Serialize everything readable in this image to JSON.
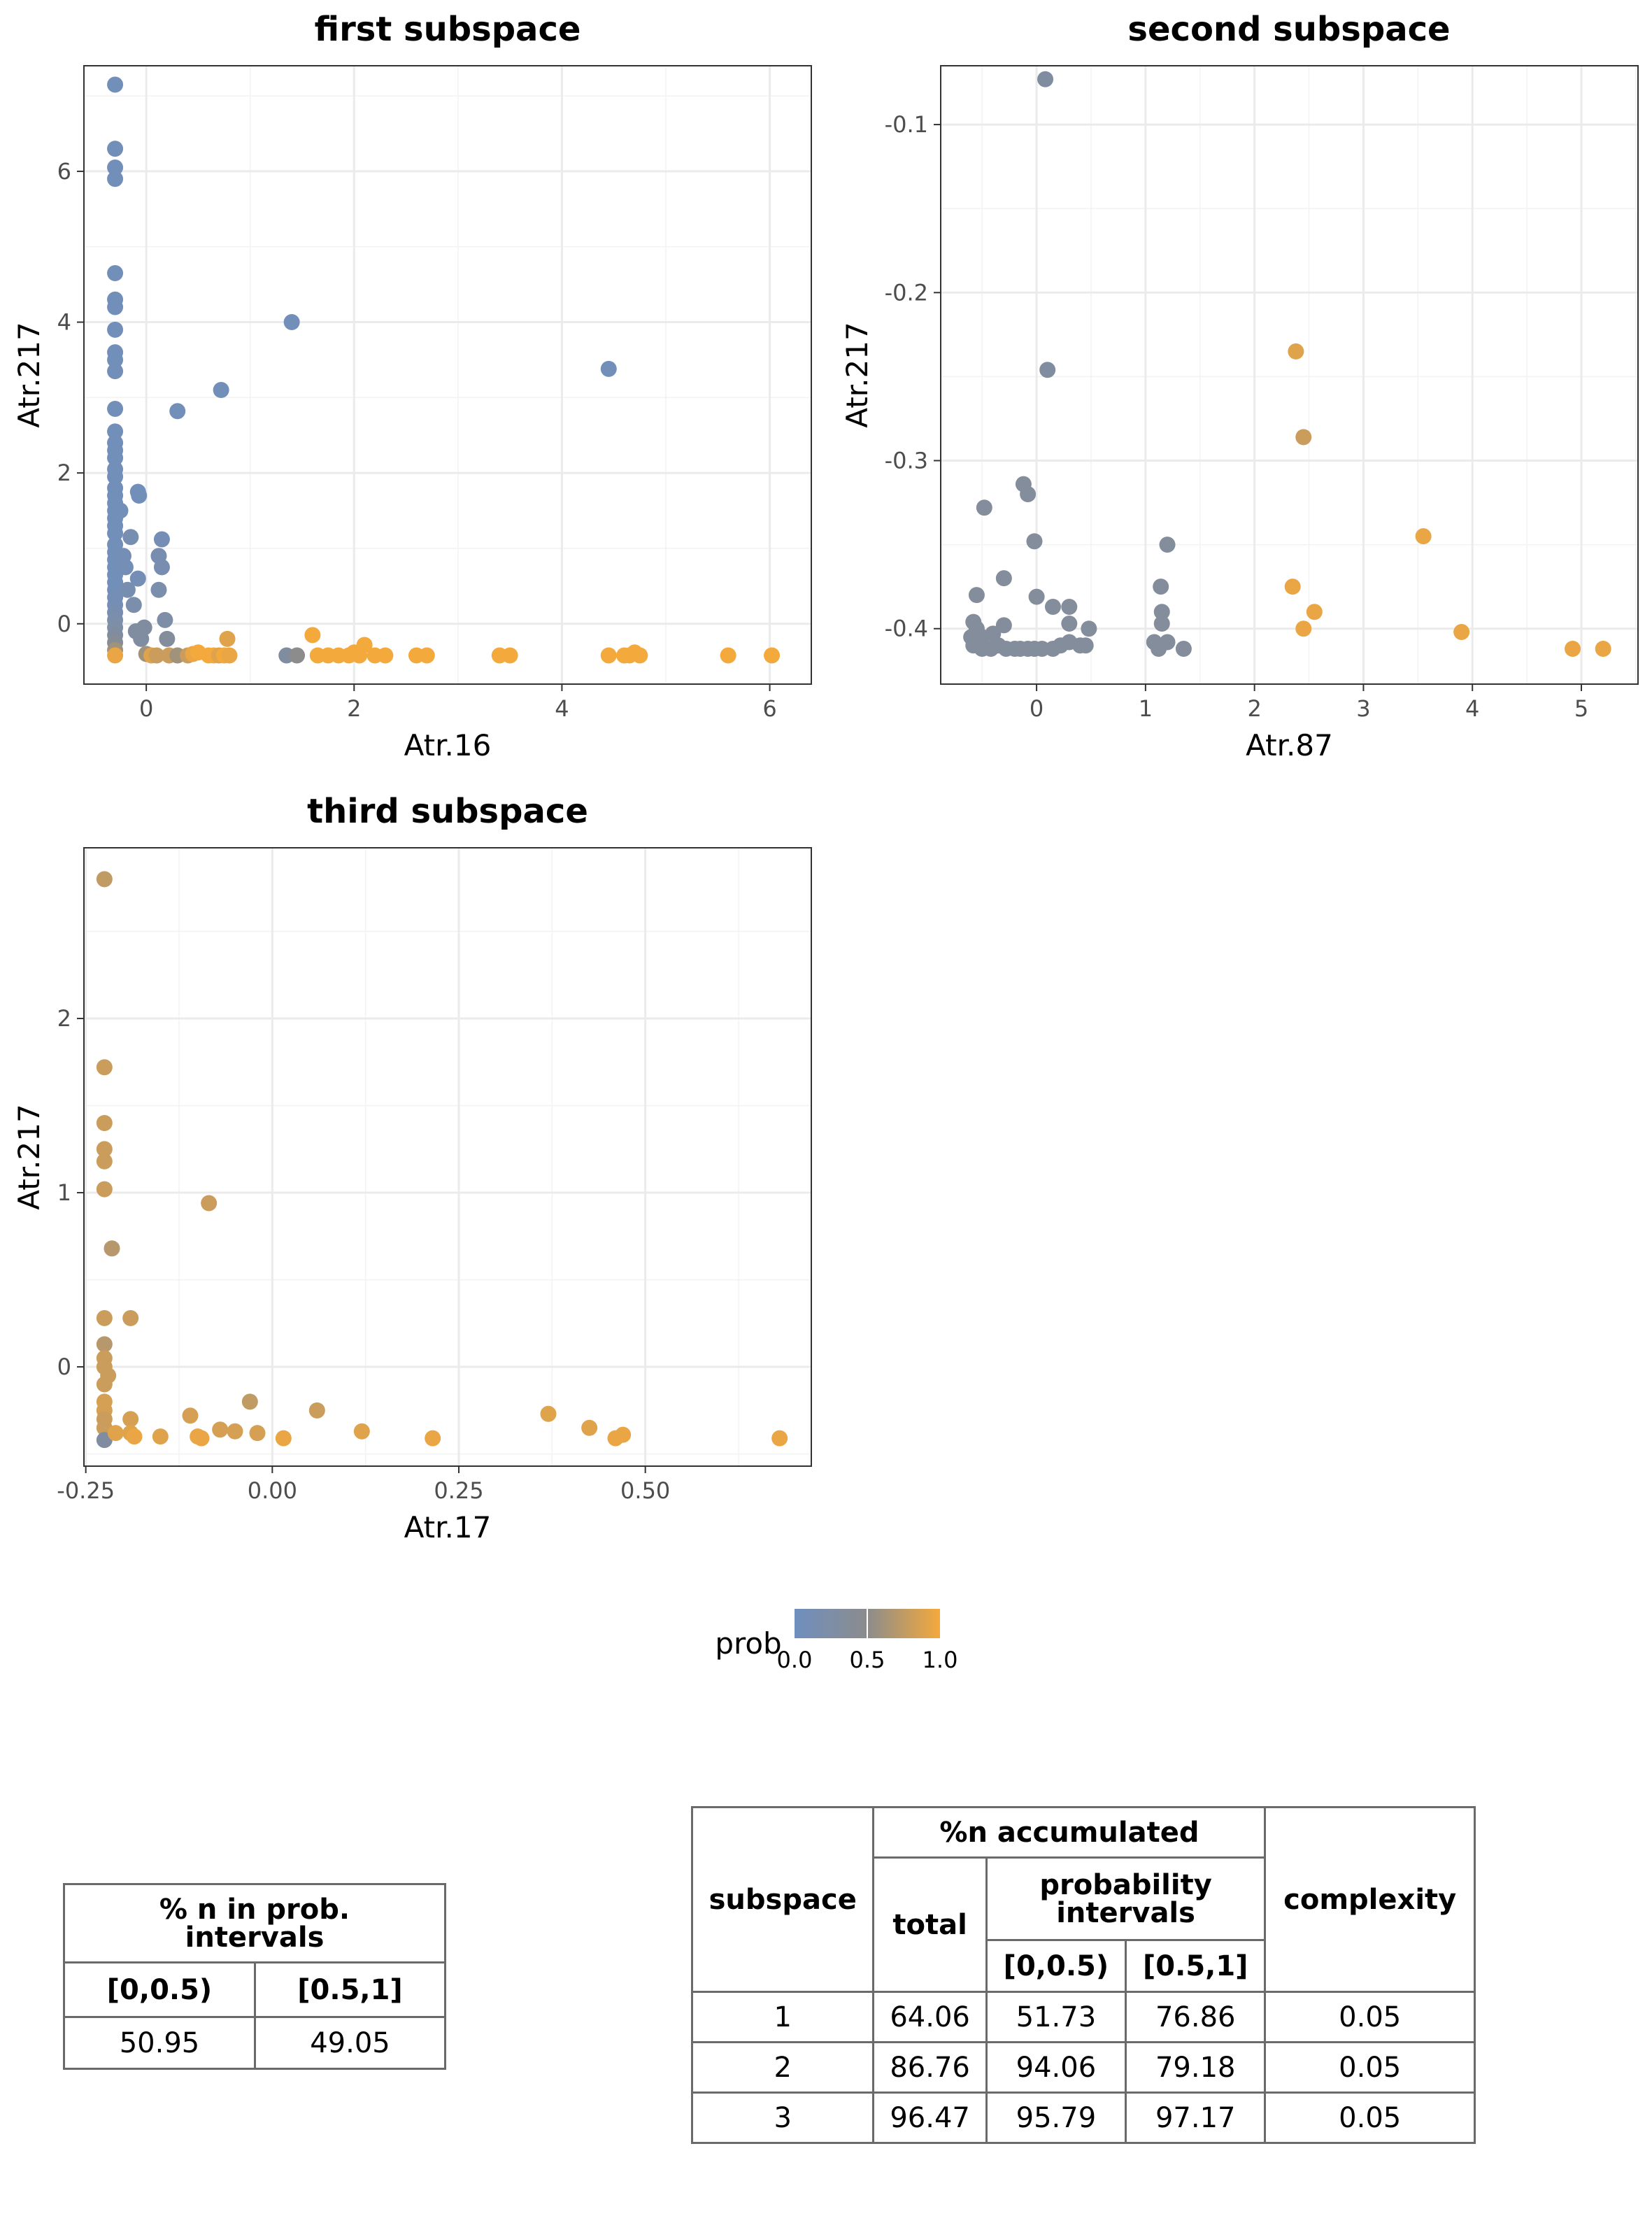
{
  "chart_data": [
    {
      "type": "scatter",
      "title": "first subspace",
      "xlabel": "Atr.16",
      "ylabel": "Atr.217",
      "xlim": [
        -0.6,
        6.4
      ],
      "ylim": [
        -0.8,
        7.4
      ],
      "xticks": [
        "0",
        "2",
        "4",
        "6"
      ],
      "xtick_values": [
        0,
        2,
        4,
        6
      ],
      "yticks": [
        "0",
        "2",
        "4",
        "6"
      ],
      "ytick_values": [
        0,
        2,
        4,
        6
      ],
      "points": [
        [
          -0.3,
          7.15,
          0.05
        ],
        [
          -0.3,
          6.3,
          0.05
        ],
        [
          -0.3,
          6.05,
          0.05
        ],
        [
          -0.3,
          5.9,
          0.05
        ],
        [
          -0.3,
          4.65,
          0.05
        ],
        [
          -0.3,
          4.3,
          0.05
        ],
        [
          -0.3,
          4.2,
          0.05
        ],
        [
          -0.3,
          3.9,
          0.05
        ],
        [
          -0.3,
          3.6,
          0.05
        ],
        [
          -0.3,
          3.5,
          0.05
        ],
        [
          -0.3,
          3.35,
          0.05
        ],
        [
          -0.3,
          2.85,
          0.05
        ],
        [
          -0.3,
          2.55,
          0.05
        ],
        [
          -0.3,
          2.4,
          0.05
        ],
        [
          -0.3,
          2.3,
          0.05
        ],
        [
          -0.3,
          2.2,
          0.05
        ],
        [
          -0.3,
          2.05,
          0.05
        ],
        [
          -0.3,
          1.95,
          0.05
        ],
        [
          -0.3,
          1.8,
          0.05
        ],
        [
          -0.3,
          1.7,
          0.05
        ],
        [
          -0.3,
          1.6,
          0.05
        ],
        [
          -0.3,
          1.5,
          0.05
        ],
        [
          -0.3,
          1.4,
          0.05
        ],
        [
          -0.3,
          1.3,
          0.05
        ],
        [
          -0.3,
          1.2,
          0.05
        ],
        [
          -0.3,
          1.05,
          0.05
        ],
        [
          -0.3,
          0.95,
          0.05
        ],
        [
          -0.3,
          0.85,
          0.05
        ],
        [
          -0.3,
          0.75,
          0.05
        ],
        [
          -0.3,
          0.65,
          0.05
        ],
        [
          -0.3,
          0.55,
          0.05
        ],
        [
          -0.3,
          0.45,
          0.05
        ],
        [
          -0.3,
          0.35,
          0.1
        ],
        [
          -0.3,
          0.25,
          0.1
        ],
        [
          -0.3,
          0.15,
          0.15
        ],
        [
          -0.3,
          0.05,
          0.2
        ],
        [
          -0.3,
          -0.05,
          0.25
        ],
        [
          -0.3,
          -0.15,
          0.3
        ],
        [
          -0.3,
          -0.25,
          0.4
        ],
        [
          -0.3,
          -0.35,
          0.6
        ],
        [
          -0.3,
          -0.42,
          0.95
        ],
        [
          -0.25,
          1.5,
          0.05
        ],
        [
          -0.22,
          0.9,
          0.1
        ],
        [
          -0.2,
          0.75,
          0.1
        ],
        [
          -0.18,
          0.45,
          0.15
        ],
        [
          -0.15,
          1.15,
          0.15
        ],
        [
          -0.12,
          0.25,
          0.2
        ],
        [
          -0.1,
          -0.1,
          0.3
        ],
        [
          -0.08,
          1.75,
          0.05
        ],
        [
          -0.07,
          1.7,
          0.05
        ],
        [
          -0.08,
          0.6,
          0.1
        ],
        [
          -0.05,
          -0.2,
          0.3
        ],
        [
          -0.02,
          -0.05,
          0.3
        ],
        [
          0.0,
          -0.4,
          0.6
        ],
        [
          0.05,
          -0.42,
          0.9
        ],
        [
          0.1,
          -0.42,
          0.8
        ],
        [
          0.12,
          0.9,
          0.15
        ],
        [
          0.12,
          0.45,
          0.2
        ],
        [
          0.15,
          0.75,
          0.15
        ],
        [
          0.15,
          1.12,
          0.1
        ],
        [
          0.18,
          0.05,
          0.25
        ],
        [
          0.2,
          -0.2,
          0.35
        ],
        [
          0.22,
          -0.42,
          0.8
        ],
        [
          0.3,
          2.82,
          0.05
        ],
        [
          0.3,
          -0.42,
          0.6
        ],
        [
          0.4,
          -0.42,
          0.8
        ],
        [
          0.45,
          -0.4,
          0.95
        ],
        [
          0.5,
          -0.38,
          1.0
        ],
        [
          0.6,
          -0.42,
          1.0
        ],
        [
          0.65,
          -0.42,
          1.0
        ],
        [
          0.7,
          -0.42,
          0.9
        ],
        [
          0.72,
          3.1,
          0.05
        ],
        [
          0.75,
          -0.42,
          1.0
        ],
        [
          0.78,
          -0.2,
          0.9
        ],
        [
          0.8,
          -0.42,
          0.95
        ],
        [
          1.35,
          -0.42,
          0.3
        ],
        [
          1.4,
          4.0,
          0.05
        ],
        [
          1.45,
          -0.42,
          0.5
        ],
        [
          1.6,
          -0.15,
          1.0
        ],
        [
          1.65,
          -0.42,
          1.0
        ],
        [
          1.75,
          -0.42,
          1.0
        ],
        [
          1.85,
          -0.42,
          1.0
        ],
        [
          1.95,
          -0.42,
          1.0
        ],
        [
          2.0,
          -0.38,
          1.0
        ],
        [
          2.05,
          -0.42,
          1.0
        ],
        [
          2.1,
          -0.28,
          1.0
        ],
        [
          2.2,
          -0.42,
          1.0
        ],
        [
          2.3,
          -0.42,
          1.0
        ],
        [
          2.6,
          -0.42,
          1.0
        ],
        [
          2.7,
          -0.42,
          1.0
        ],
        [
          3.4,
          -0.42,
          1.0
        ],
        [
          3.5,
          -0.42,
          1.0
        ],
        [
          4.45,
          3.38,
          0.05
        ],
        [
          4.45,
          -0.42,
          1.0
        ],
        [
          4.6,
          -0.42,
          1.0
        ],
        [
          4.65,
          -0.42,
          1.0
        ],
        [
          4.7,
          -0.38,
          1.0
        ],
        [
          4.75,
          -0.42,
          1.0
        ],
        [
          5.6,
          -0.42,
          1.0
        ],
        [
          6.02,
          -0.42,
          1.0
        ]
      ]
    },
    {
      "type": "scatter",
      "title": "second subspace",
      "xlabel": "Atr.87",
      "ylabel": "Atr.217",
      "xlim": [
        -0.88,
        5.52
      ],
      "ylim": [
        -0.433,
        -0.065
      ],
      "xticks": [
        "0",
        "1",
        "2",
        "3",
        "4",
        "5"
      ],
      "xtick_values": [
        0,
        1,
        2,
        3,
        4,
        5
      ],
      "yticks": [
        "-0.4",
        "-0.3",
        "-0.2",
        "-0.1"
      ],
      "ytick_values": [
        -0.4,
        -0.3,
        -0.2,
        -0.1
      ],
      "points": [
        [
          0.08,
          -0.073,
          0.3
        ],
        [
          0.1,
          -0.246,
          0.3
        ],
        [
          2.38,
          -0.235,
          0.9
        ],
        [
          2.45,
          -0.286,
          0.8
        ],
        [
          -0.48,
          -0.328,
          0.35
        ],
        [
          -0.12,
          -0.314,
          0.35
        ],
        [
          -0.08,
          -0.32,
          0.35
        ],
        [
          -0.02,
          -0.348,
          0.35
        ],
        [
          1.2,
          -0.35,
          0.35
        ],
        [
          3.55,
          -0.345,
          0.95
        ],
        [
          -0.55,
          -0.38,
          0.35
        ],
        [
          -0.3,
          -0.37,
          0.35
        ],
        [
          0.0,
          -0.381,
          0.35
        ],
        [
          0.15,
          -0.387,
          0.35
        ],
        [
          0.3,
          -0.387,
          0.35
        ],
        [
          1.14,
          -0.375,
          0.35
        ],
        [
          2.35,
          -0.375,
          0.95
        ],
        [
          2.55,
          -0.39,
          0.95
        ],
        [
          1.15,
          -0.39,
          0.35
        ],
        [
          1.15,
          -0.397,
          0.35
        ],
        [
          0.3,
          -0.397,
          0.35
        ],
        [
          0.48,
          -0.4,
          0.35
        ],
        [
          2.45,
          -0.4,
          0.95
        ],
        [
          3.9,
          -0.402,
          0.95
        ],
        [
          -0.58,
          -0.396,
          0.35
        ],
        [
          -0.55,
          -0.4,
          0.35
        ],
        [
          -0.6,
          -0.405,
          0.35
        ],
        [
          -0.5,
          -0.405,
          0.35
        ],
        [
          -0.4,
          -0.403,
          0.35
        ],
        [
          -0.3,
          -0.398,
          0.35
        ],
        [
          -0.58,
          -0.41,
          0.35
        ],
        [
          -0.5,
          -0.412,
          0.35
        ],
        [
          -0.42,
          -0.412,
          0.35
        ],
        [
          -0.35,
          -0.41,
          0.35
        ],
        [
          -0.28,
          -0.412,
          0.35
        ],
        [
          -0.2,
          -0.412,
          0.35
        ],
        [
          -0.15,
          -0.412,
          0.35
        ],
        [
          -0.08,
          -0.412,
          0.35
        ],
        [
          -0.02,
          -0.412,
          0.35
        ],
        [
          0.05,
          -0.412,
          0.35
        ],
        [
          0.15,
          -0.412,
          0.35
        ],
        [
          0.22,
          -0.41,
          0.35
        ],
        [
          0.3,
          -0.408,
          0.35
        ],
        [
          0.4,
          -0.41,
          0.35
        ],
        [
          0.45,
          -0.41,
          0.35
        ],
        [
          1.08,
          -0.408,
          0.35
        ],
        [
          1.12,
          -0.412,
          0.35
        ],
        [
          1.2,
          -0.408,
          0.35
        ],
        [
          1.35,
          -0.412,
          0.35
        ],
        [
          4.92,
          -0.412,
          0.95
        ],
        [
          5.2,
          -0.412,
          0.95
        ]
      ]
    },
    {
      "type": "scatter",
      "title": "third subspace",
      "xlabel": "Atr.17",
      "ylabel": "Atr.217",
      "xlim": [
        -0.2525,
        0.7225
      ],
      "ylim": [
        -0.57,
        2.98
      ],
      "xticks": [
        "-0.25",
        "0.00",
        "0.25",
        "0.50"
      ],
      "xtick_values": [
        -0.25,
        0,
        0.25,
        0.5
      ],
      "yticks": [
        "0",
        "1",
        "2"
      ],
      "ytick_values": [
        0,
        1,
        2
      ],
      "points": [
        [
          -0.225,
          2.8,
          0.75
        ],
        [
          -0.225,
          1.72,
          0.8
        ],
        [
          -0.225,
          1.4,
          0.8
        ],
        [
          -0.225,
          1.25,
          0.8
        ],
        [
          -0.225,
          1.18,
          0.8
        ],
        [
          -0.225,
          1.02,
          0.8
        ],
        [
          -0.215,
          0.68,
          0.7
        ],
        [
          -0.225,
          0.28,
          0.8
        ],
        [
          -0.19,
          0.28,
          0.8
        ],
        [
          -0.225,
          0.13,
          0.7
        ],
        [
          -0.225,
          0.05,
          0.8
        ],
        [
          -0.225,
          0.0,
          0.8
        ],
        [
          -0.22,
          -0.05,
          0.8
        ],
        [
          -0.225,
          -0.1,
          0.8
        ],
        [
          -0.225,
          -0.2,
          0.85
        ],
        [
          -0.225,
          -0.25,
          0.85
        ],
        [
          -0.225,
          -0.3,
          0.8
        ],
        [
          -0.225,
          -0.35,
          0.8
        ],
        [
          -0.225,
          -0.42,
          0.3
        ],
        [
          -0.21,
          -0.38,
          0.9
        ],
        [
          -0.19,
          -0.3,
          0.85
        ],
        [
          -0.19,
          -0.38,
          0.9
        ],
        [
          -0.185,
          -0.4,
          0.95
        ],
        [
          -0.15,
          -0.4,
          0.9
        ],
        [
          -0.11,
          -0.28,
          0.85
        ],
        [
          -0.1,
          -0.4,
          0.95
        ],
        [
          -0.095,
          -0.41,
          0.95
        ],
        [
          -0.085,
          0.94,
          0.8
        ],
        [
          -0.07,
          -0.36,
          0.85
        ],
        [
          -0.05,
          -0.37,
          0.85
        ],
        [
          -0.03,
          -0.2,
          0.75
        ],
        [
          -0.02,
          -0.38,
          0.85
        ],
        [
          0.015,
          -0.41,
          0.95
        ],
        [
          0.06,
          -0.25,
          0.8
        ],
        [
          0.12,
          -0.37,
          0.9
        ],
        [
          0.215,
          -0.41,
          0.95
        ],
        [
          0.37,
          -0.27,
          0.9
        ],
        [
          0.425,
          -0.35,
          0.9
        ],
        [
          0.46,
          -0.41,
          0.95
        ],
        [
          0.47,
          -0.39,
          0.95
        ],
        [
          0.68,
          -0.41,
          0.95
        ]
      ]
    }
  ],
  "legend": {
    "title": "prob",
    "ticks": [
      "0.0",
      "0.5",
      "1.0"
    ],
    "low_color": "#6f8fbf",
    "mid_color": "#8c8c8c",
    "high_color": "#f4a93c"
  },
  "left_table": {
    "header": "% n in prob. intervals",
    "header_line1": "% n in prob.",
    "header_line2": "intervals",
    "col1": "[0,0.5)",
    "col2": "[0.5,1]",
    "val1": "50.95",
    "val2": "49.05"
  },
  "right_table": {
    "h_subspace": "subspace",
    "h_accum": "%n accumulated",
    "h_total": "total",
    "h_prob": "probability intervals",
    "h_prob_line1": "probability",
    "h_prob_line2": "intervals",
    "h_lo": "[0,0.5)",
    "h_hi": "[0.5,1]",
    "h_complexity": "complexity",
    "rows": [
      [
        "1",
        "64.06",
        "51.73",
        "76.86",
        "0.05"
      ],
      [
        "2",
        "86.76",
        "94.06",
        "79.18",
        "0.05"
      ],
      [
        "3",
        "96.47",
        "95.79",
        "97.17",
        "0.05"
      ]
    ]
  }
}
